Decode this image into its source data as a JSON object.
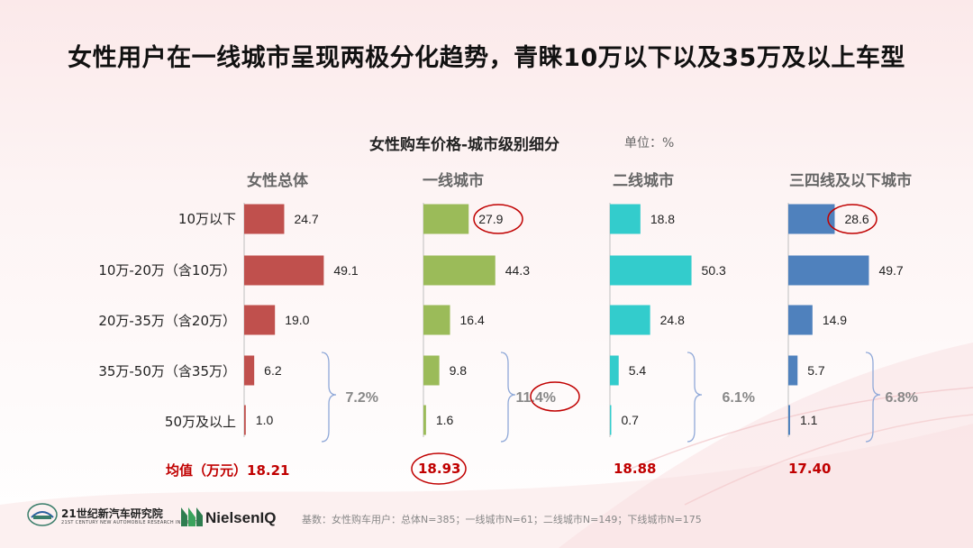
{
  "title": "女性用户在一线城市呈现两极分化趋势，青睐10万以下以及35万及以上车型",
  "footer_note": "基数：女性购车用户：总体N=385；一线城市N=61；二线城市N=149；下线城市N=175",
  "logos": {
    "research": "21世纪新汽车研究院",
    "research_sub": "21ST CENTURY NEW AUTOMOBILE RESEARCH INSTITUTE",
    "nielsen": "NielsenIQ"
  },
  "colors": {
    "overall": "#c0504d",
    "tier1": "#9bbb59",
    "tier2": "#33cccc",
    "tier3": "#4f81bd",
    "bracket": "#8fa8d8",
    "highlight": "#c00000"
  },
  "chart_data": {
    "type": "bar",
    "orientation": "horizontal",
    "title": "女性购车价格-城市级别细分",
    "unit": "单位：%",
    "categories": [
      "10万以下",
      "10万-20万（含10万）",
      "20万-35万（含20万）",
      "35万-50万（含35万）",
      "50万及以上"
    ],
    "series": [
      {
        "name": "女性总体",
        "values": [
          24.7,
          49.1,
          19.0,
          6.2,
          1.0
        ],
        "labels": [
          "24.7",
          "49.1",
          "19.0",
          "6.2",
          "1.0"
        ],
        "bracket_total": "7.2%",
        "average": "18.21",
        "average_label": "均值（万元）18.21"
      },
      {
        "name": "一线城市",
        "values": [
          27.9,
          44.3,
          16.4,
          9.8,
          1.6
        ],
        "labels": [
          "27.9",
          "44.3",
          "16.4",
          "9.8",
          "1.6"
        ],
        "bracket_total": "11.4%",
        "average": "18.93",
        "average_label": "18.93"
      },
      {
        "name": "二线城市",
        "values": [
          18.8,
          50.3,
          24.8,
          5.4,
          0.7
        ],
        "labels": [
          "18.8",
          "50.3",
          "24.8",
          "5.4",
          "0.7"
        ],
        "bracket_total": "6.1%",
        "average": "18.88",
        "average_label": "18.88"
      },
      {
        "name": "三四线及以下城市",
        "values": [
          28.6,
          49.7,
          14.9,
          5.7,
          1.1
        ],
        "labels": [
          "28.6",
          "49.7",
          "14.9",
          "5.7",
          "1.1"
        ],
        "bracket_total": "6.8%",
        "average": "17.40",
        "average_label": "17.40"
      }
    ],
    "highlighted": [
      "一线城市 10万以下 27.9",
      "三四线及以下城市 10万以下 28.6",
      "一线城市 7.2%→11.4%",
      "一线城市 均值 18.93"
    ]
  }
}
